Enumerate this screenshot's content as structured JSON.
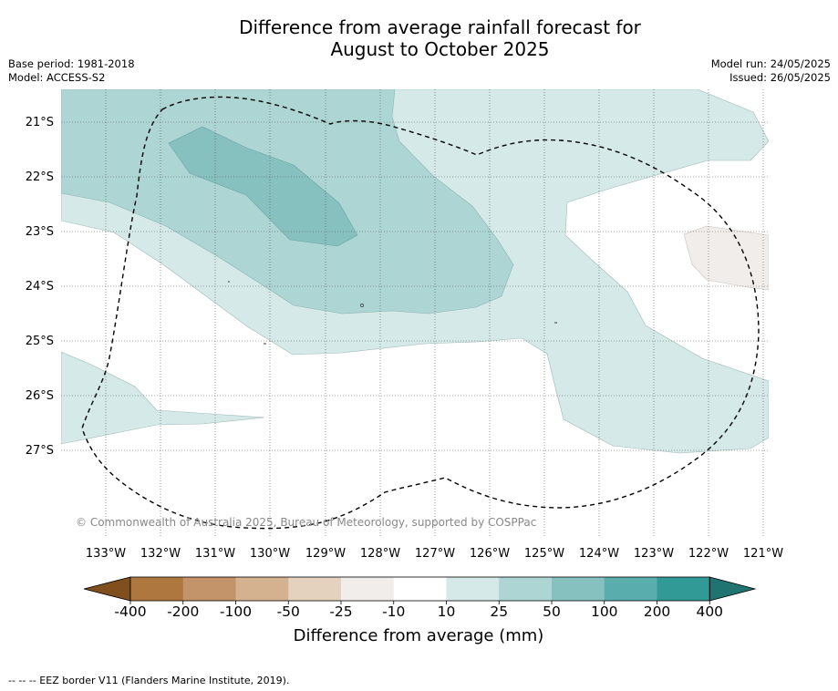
{
  "header": {
    "title_line1": "Difference from average rainfall forecast for",
    "title_line2": "August to October 2025",
    "base_period": "Base period: 1981-2018",
    "model": "Model: ACCESS-S2",
    "model_run": "Model run: 24/05/2025",
    "issued": "Issued: 26/05/2025"
  },
  "map": {
    "copyright": "© Commonwealth of Australia 2025, Bureau of Meteorology, supported by COSPPac",
    "lat_labels": [
      "21°S",
      "22°S",
      "23°S",
      "24°S",
      "25°S",
      "26°S",
      "27°S"
    ],
    "lon_labels": [
      "133°W",
      "132°W",
      "131°W",
      "130°W",
      "129°W",
      "128°W",
      "127°W",
      "126°W",
      "125°W",
      "124°W",
      "123°W",
      "122°W",
      "121°W"
    ],
    "colors": {
      "light_teal": "#d4e9e8",
      "mid_teal": "#acd5d4",
      "dark_teal": "#86c1c0",
      "light_brown": "#f1edea"
    }
  },
  "colorbar": {
    "title": "Difference from average (mm)",
    "ticks": [
      "-400",
      "-200",
      "-100",
      "-50",
      "-25",
      "-10",
      "10",
      "25",
      "50",
      "100",
      "200",
      "400"
    ],
    "colors": [
      "#7f4f1e",
      "#ae7740",
      "#c39369",
      "#d4b18f",
      "#e4d2be",
      "#f1edea",
      "#ffffff",
      "#d4e9e8",
      "#acd5d4",
      "#86c1c0",
      "#59adac",
      "#319a97",
      "#1f7471"
    ]
  },
  "footnote": "--  --  -- EEZ border V11 (Flanders Marine Institute, 2019)."
}
